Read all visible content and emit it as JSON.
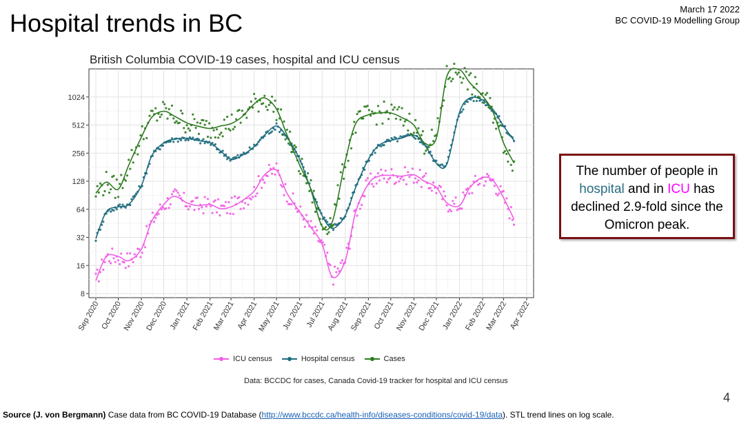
{
  "slide": {
    "title": "Hospital trends in BC",
    "date": "March 17 2022",
    "group": "BC COVID-19 Modelling Group",
    "page_number": "4"
  },
  "callout": {
    "part1": "The number of people in",
    "hospital_word": "hospital",
    "part2": " and in ",
    "icu_word": "ICU",
    "part3": " has declined 2.9-fold since the Omicron peak.",
    "hospital_color": "#2b6e82",
    "icu_color": "#ff00ff",
    "border_color": "#7a0e14"
  },
  "source": {
    "label": "Source (J. von Bergmann)",
    "text1": " Case data from BC COVID-19 Database (",
    "link": "http://www.bccdc.ca/health-info/diseases-conditions/covid-19/data",
    "text2": "). STL trend lines on log scale."
  },
  "chart_data": {
    "type": "line",
    "title": "British Columbia COVID-19 cases, hospital and ICU census",
    "caption": "Data: BCCDC for cases, Canada Covid-19 tracker for hospital and ICU census",
    "y_scale": "log2",
    "ylim": [
      8,
      2048
    ],
    "y_ticks": [
      8,
      16,
      32,
      64,
      128,
      256,
      512,
      1024
    ],
    "x_range": [
      "2020-09-01",
      "2022-04-01"
    ],
    "x_ticks": [
      "Sep 2020",
      "Oct 2020",
      "Nov 2020",
      "Dec 2020",
      "Jan 2021",
      "Feb 2021",
      "Mar 2021",
      "Apr 2021",
      "May 2021",
      "Jun 2021",
      "Jul 2021",
      "Aug 2021",
      "Sep 2021",
      "Oct 2021",
      "Nov 2021",
      "Dec 2021",
      "Jan 2022",
      "Feb 2022",
      "Mar 2022",
      "Apr 2022"
    ],
    "grid": true,
    "legend_position": "bottom",
    "x": [
      "2020-09-01",
      "2020-09-15",
      "2020-10-01",
      "2020-10-15",
      "2020-11-01",
      "2020-11-15",
      "2020-12-01",
      "2020-12-15",
      "2021-01-01",
      "2021-01-15",
      "2021-02-01",
      "2021-02-15",
      "2021-03-01",
      "2021-03-15",
      "2021-04-01",
      "2021-04-15",
      "2021-05-01",
      "2021-05-15",
      "2021-06-01",
      "2021-06-15",
      "2021-07-01",
      "2021-07-15",
      "2021-08-01",
      "2021-08-15",
      "2021-09-01",
      "2021-09-15",
      "2021-10-01",
      "2021-10-15",
      "2021-11-01",
      "2021-11-15",
      "2021-12-01",
      "2021-12-15",
      "2022-01-01",
      "2022-01-15",
      "2022-02-01",
      "2022-02-15",
      "2022-03-01",
      "2022-03-15"
    ],
    "series": [
      {
        "name": "ICU census",
        "color": "#f15ce6",
        "values": [
          11,
          20,
          20,
          18,
          24,
          48,
          72,
          88,
          75,
          70,
          72,
          65,
          68,
          78,
          100,
          150,
          168,
          95,
          60,
          42,
          27,
          12,
          18,
          60,
          120,
          145,
          148,
          145,
          150,
          128,
          110,
          75,
          70,
          110,
          140,
          130,
          85,
          50
        ]
      },
      {
        "name": "Hospital census",
        "color": "#1d6b7d",
        "values": [
          31,
          60,
          68,
          72,
          115,
          240,
          330,
          360,
          370,
          350,
          330,
          270,
          220,
          240,
          300,
          400,
          500,
          380,
          220,
          110,
          55,
          40,
          55,
          110,
          220,
          310,
          350,
          370,
          400,
          320,
          200,
          195,
          700,
          1000,
          950,
          750,
          500,
          350
        ]
      },
      {
        "name": "Cases",
        "color": "#2b7a1d",
        "values": [
          95,
          125,
          105,
          190,
          380,
          620,
          720,
          640,
          540,
          500,
          470,
          500,
          530,
          620,
          860,
          1000,
          760,
          400,
          190,
          110,
          42,
          48,
          210,
          530,
          660,
          690,
          690,
          620,
          510,
          330,
          370,
          1700,
          2000,
          1450,
          1050,
          700,
          330,
          200
        ]
      }
    ]
  }
}
